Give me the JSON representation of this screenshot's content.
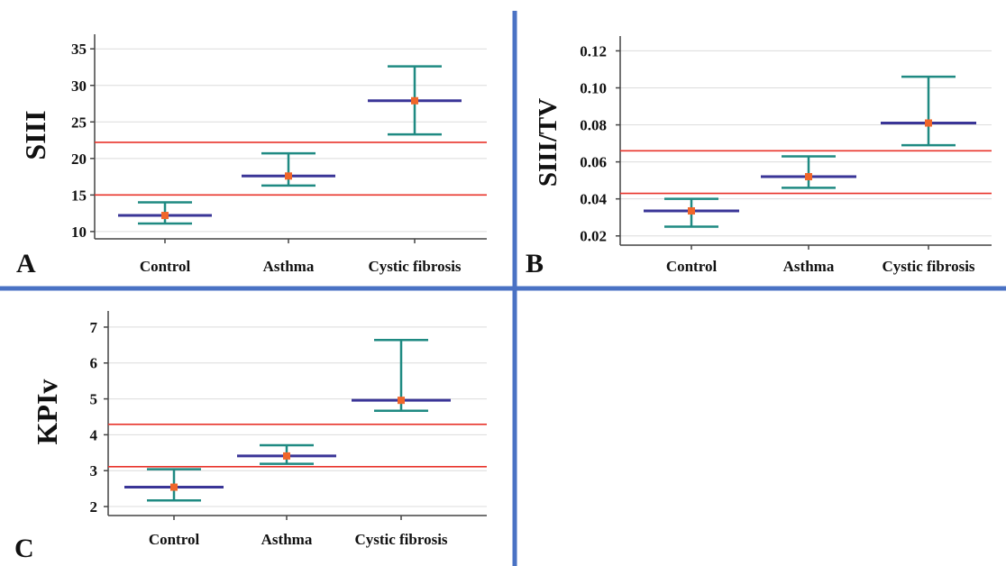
{
  "figure": {
    "colors": {
      "divider": "#4a72c4",
      "reference_line": "#e8332a",
      "whisker": "#1f8a82",
      "median": "#3a3597",
      "mean_marker": "#f0662a",
      "axis": "#444444",
      "gridline": "#dcdcdc"
    }
  },
  "chart_data": [
    {
      "type": "errorbar",
      "panel_label": "A",
      "ylabel": "SIII",
      "xlabel": "",
      "categories": [
        "Control",
        "Asthma",
        "Cystic fibrosis"
      ],
      "ylim": [
        9,
        37
      ],
      "yticks": [
        10,
        15,
        20,
        25,
        30,
        35
      ],
      "ytick_labels": [
        "10",
        "15",
        "20",
        "25",
        "30",
        "35"
      ],
      "grid": true,
      "series": [
        {
          "low": [
            11.1,
            16.3,
            23.3
          ],
          "center": [
            12.2,
            17.6,
            27.9
          ],
          "high": [
            14.0,
            20.7,
            32.6
          ],
          "mean": [
            12.2,
            17.6,
            27.9
          ]
        }
      ],
      "reference_lines": [
        15.0,
        22.2
      ]
    },
    {
      "type": "errorbar",
      "panel_label": "B",
      "ylabel": "SIII/TV",
      "xlabel": "",
      "categories": [
        "Control",
        "Asthma",
        "Cystic fibrosis"
      ],
      "ylim": [
        0.015,
        0.128
      ],
      "yticks": [
        0.02,
        0.04,
        0.06,
        0.08,
        0.1,
        0.12
      ],
      "ytick_labels": [
        "0.02",
        "0.04",
        "0.06",
        "0.08",
        "0.10",
        "0.12"
      ],
      "grid": true,
      "series": [
        {
          "low": [
            0.025,
            0.046,
            0.069
          ],
          "center": [
            0.0335,
            0.052,
            0.081
          ],
          "high": [
            0.04,
            0.063,
            0.106
          ],
          "mean": [
            0.0335,
            0.052,
            0.081
          ]
        }
      ],
      "reference_lines": [
        0.043,
        0.066
      ]
    },
    {
      "type": "errorbar",
      "panel_label": "C",
      "ylabel": "KPIv",
      "xlabel": "",
      "categories": [
        "Control",
        "Asthma",
        "Cystic fibrosis"
      ],
      "ylim": [
        1.75,
        7.45
      ],
      "yticks": [
        2,
        3,
        4,
        5,
        6,
        7
      ],
      "ytick_labels": [
        "2",
        "3",
        "4",
        "5",
        "6",
        "7"
      ],
      "grid": true,
      "series": [
        {
          "low": [
            2.17,
            3.19,
            4.67
          ],
          "center": [
            2.54,
            3.41,
            4.96
          ],
          "high": [
            3.04,
            3.71,
            6.64
          ],
          "mean": [
            2.54,
            3.41,
            4.96
          ]
        }
      ],
      "reference_lines": [
        3.11,
        4.29
      ]
    }
  ]
}
